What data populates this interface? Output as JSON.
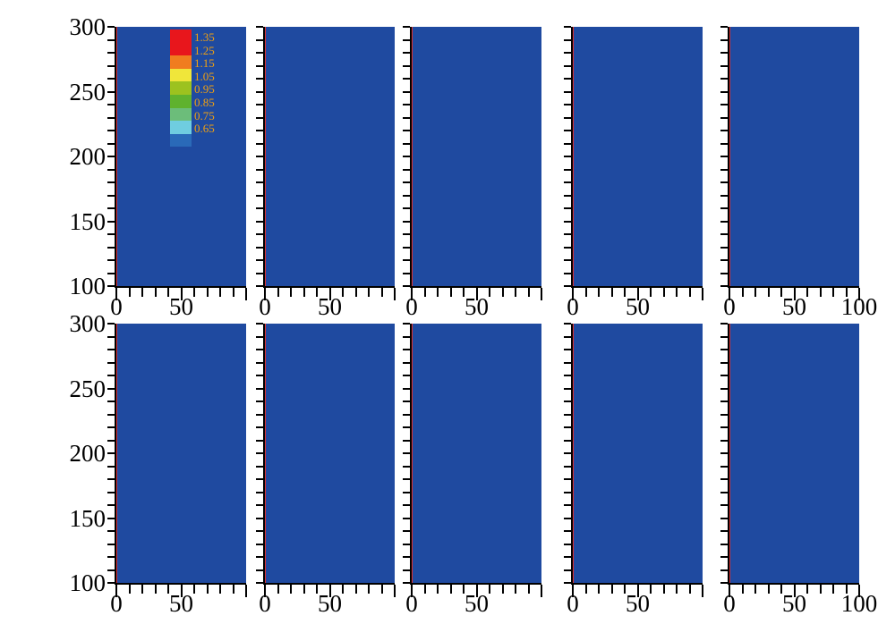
{
  "chart_data": {
    "type": "heatmap",
    "title": "",
    "xlabel": "",
    "ylabel": "",
    "xlim": [
      0,
      100
    ],
    "ylim": [
      100,
      300
    ],
    "grid": false,
    "rows": 2,
    "columns": 5,
    "yticks": [
      "300",
      "250",
      "200",
      "150",
      "100"
    ],
    "xticks": [
      "0",
      "50"
    ],
    "xticks_last": [
      "0",
      "50",
      "100"
    ],
    "colorbar": {
      "placement": "inside top-left panel",
      "levels": [
        "1.35",
        "1.25",
        "1.15",
        "1.05",
        "0.95",
        "0.85",
        "0.75",
        "0.65"
      ],
      "colors": [
        "#e8161c",
        "#f07d1f",
        "#f0e63a",
        "#9cc21f",
        "#5fb22e",
        "#6cbd7a",
        "#6fcde0",
        "#2a6ab8"
      ]
    },
    "field_colors": {
      "heavy": "#e8161c",
      "light": "#1f4aa0"
    }
  }
}
